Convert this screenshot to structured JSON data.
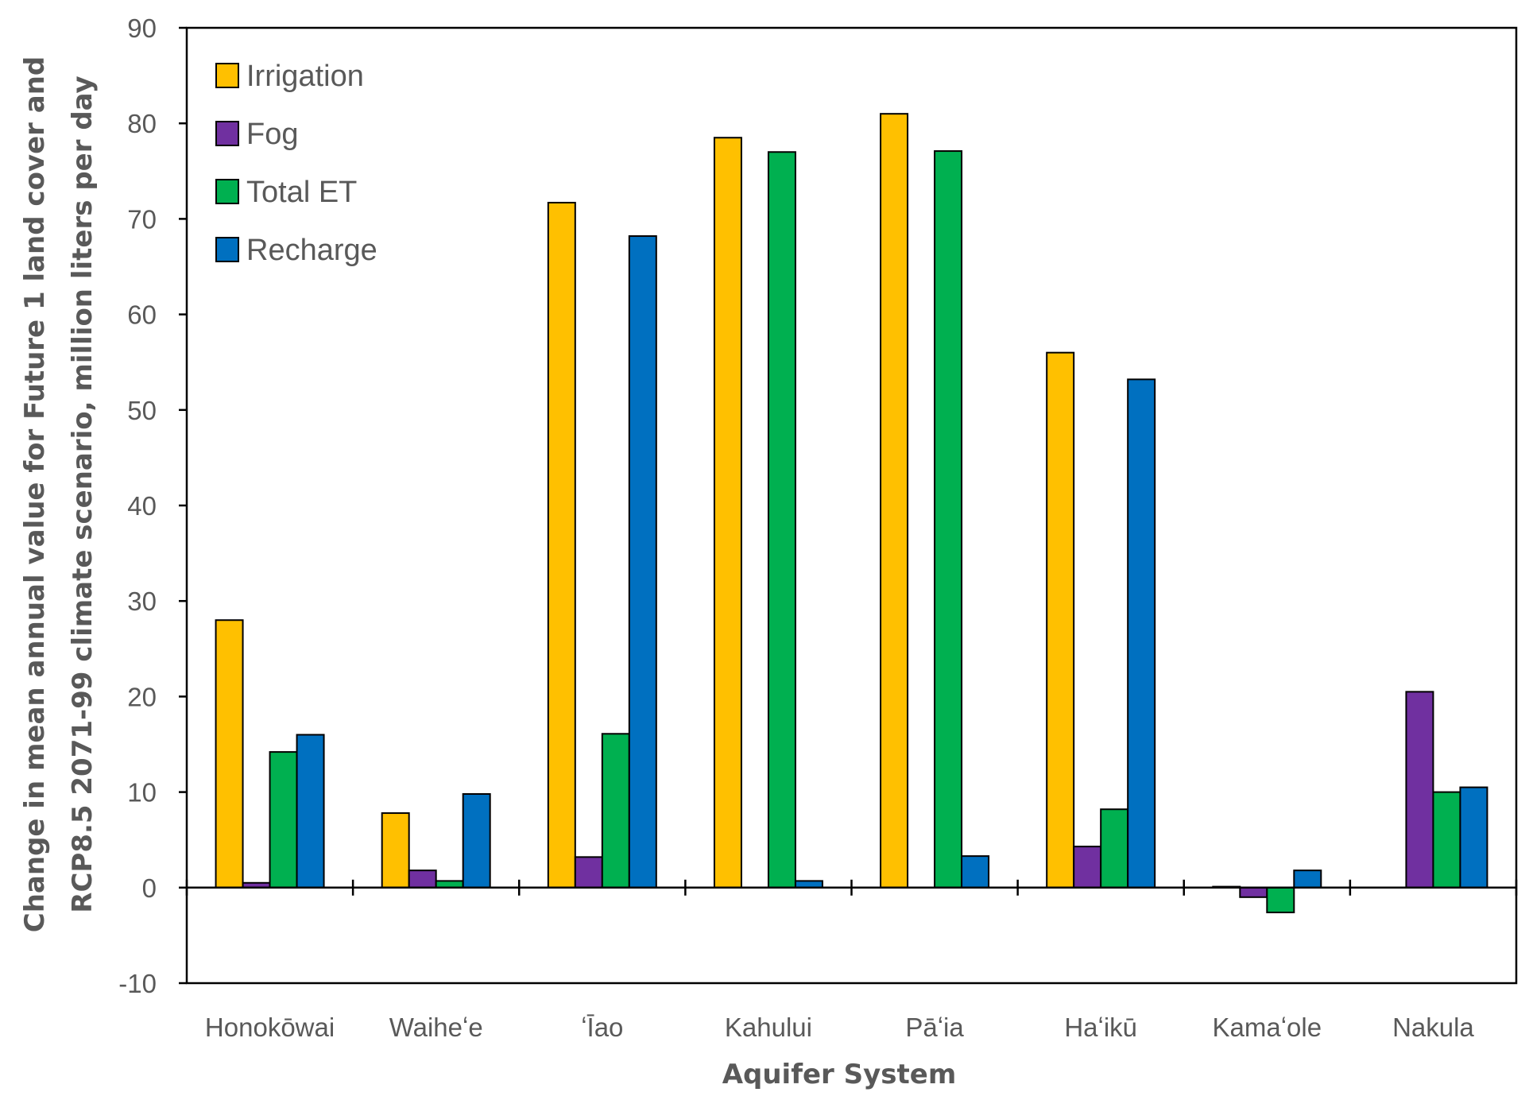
{
  "chart_data": {
    "type": "bar",
    "title": "",
    "xlabel": "Aquifer System",
    "ylabel_lines": [
      "Change in mean annual value for Future 1 land cover and",
      "RCP8.5 2071-99 climate scenario, million liters per day"
    ],
    "ylim": [
      -10,
      90
    ],
    "yticks": [
      -10,
      0,
      10,
      20,
      30,
      40,
      50,
      60,
      70,
      80,
      90
    ],
    "grid": false,
    "legend_position": "top-left",
    "categories": [
      "Honokōwai",
      "Waiheʻe",
      "ʻĪao",
      "Kahului",
      "Pāʻia",
      "Haʻikū",
      "Kamaʻole",
      "Nakula"
    ],
    "series": [
      {
        "name": "Irrigation",
        "color": "#FFC000",
        "values": [
          28.0,
          7.8,
          71.7,
          78.5,
          81.0,
          56.0,
          0.1,
          0.0
        ]
      },
      {
        "name": "Fog",
        "color": "#7030A0",
        "values": [
          0.5,
          1.8,
          3.2,
          0.0,
          0.0,
          4.3,
          -1.0,
          20.5
        ]
      },
      {
        "name": "Total ET",
        "color": "#00B050",
        "values": [
          14.2,
          0.7,
          16.1,
          77.0,
          77.1,
          8.2,
          -2.6,
          10.0
        ]
      },
      {
        "name": "Recharge",
        "color": "#0070C0",
        "values": [
          16.0,
          9.8,
          68.2,
          0.7,
          3.3,
          53.2,
          1.8,
          10.5
        ]
      }
    ]
  }
}
